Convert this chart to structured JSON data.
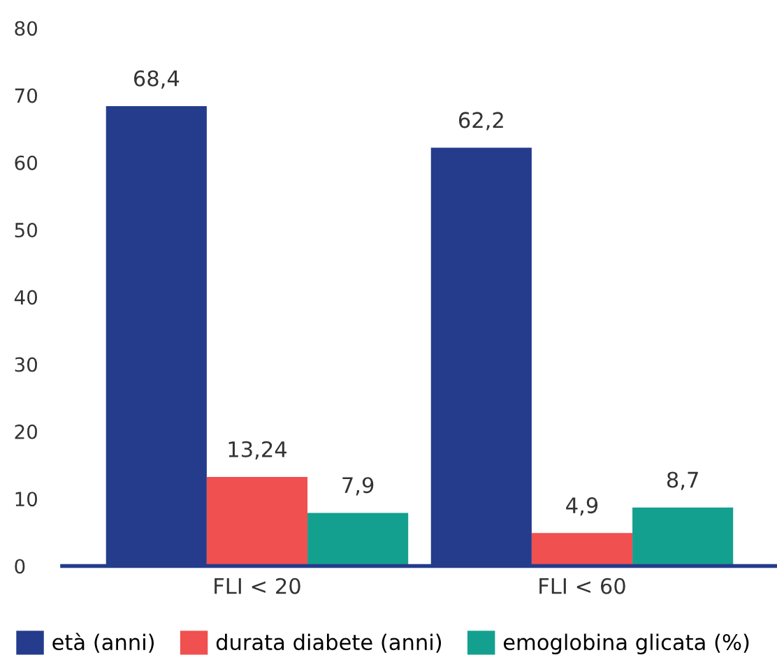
{
  "chart_data": {
    "type": "bar",
    "categories": [
      "FLI < 20",
      "FLI < 60"
    ],
    "series": [
      {
        "name": "età (anni)",
        "color": "#253c8c",
        "values": [
          68.4,
          62.2
        ],
        "value_labels": [
          "68,4",
          "62,2"
        ]
      },
      {
        "name": "durata diabete (anni)",
        "color": "#f0504f",
        "values": [
          13.24,
          4.9
        ],
        "value_labels": [
          "13,24",
          "4,9"
        ]
      },
      {
        "name": "emoglobina glicata (%)",
        "color": "#14a08e",
        "values": [
          7.9,
          8.7
        ],
        "value_labels": [
          "7,9",
          "8,7"
        ]
      }
    ],
    "ylim": [
      0,
      80
    ],
    "yticks": [
      0,
      10,
      20,
      30,
      40,
      50,
      60,
      70,
      80
    ],
    "grid": false,
    "legend": "bottom"
  }
}
